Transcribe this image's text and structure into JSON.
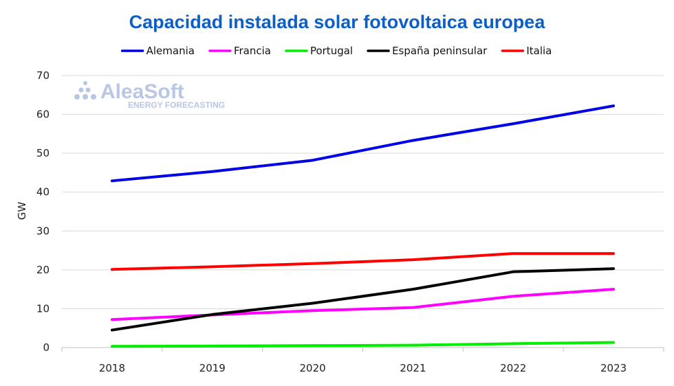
{
  "chart_data": {
    "type": "line",
    "title": "Capacidad instalada solar fotovoltaica europea",
    "ylabel": "GW",
    "xlabel": "",
    "categories": [
      "2018",
      "2019",
      "2020",
      "2021",
      "2022",
      "2023"
    ],
    "ylim": [
      0,
      70
    ],
    "yticks": [
      "0",
      "10",
      "20",
      "30",
      "40",
      "50",
      "60",
      "70"
    ],
    "grid": "horizontal",
    "legend_position": "top",
    "series": [
      {
        "name": "Alemania",
        "color": "#0000e6",
        "values": [
          42.9,
          45.3,
          48.2,
          53.3,
          57.6,
          62.2
        ]
      },
      {
        "name": "Francia",
        "color": "#ff00ff",
        "values": [
          7.2,
          8.4,
          9.5,
          10.3,
          13.2,
          15.0
        ]
      },
      {
        "name": "Portugal",
        "color": "#00ee00",
        "values": [
          0.3,
          0.4,
          0.5,
          0.6,
          1.0,
          1.3
        ]
      },
      {
        "name": "España peninsular",
        "color": "#000000",
        "values": [
          4.5,
          8.5,
          11.4,
          15.0,
          19.5,
          20.3
        ]
      },
      {
        "name": "Italia",
        "color": "#ff0000",
        "values": [
          20.1,
          20.8,
          21.6,
          22.6,
          24.2,
          24.2
        ]
      }
    ],
    "title_color": "#0b5fc6"
  },
  "watermark": {
    "brand": "AleaSoft",
    "tagline": "ENERGY FORECASTING",
    "color": "#b9c6e4"
  }
}
